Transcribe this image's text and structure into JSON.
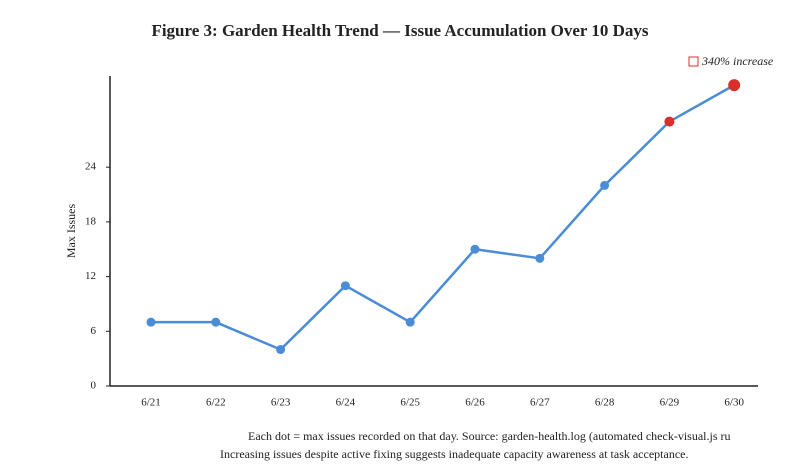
{
  "chart_data": {
    "type": "line",
    "title": "Figure 3: Garden Health Trend — Issue Accumulation Over 10 Days",
    "y_label": "Max Issues",
    "categories": [
      "6/21",
      "6/22",
      "6/23",
      "6/24",
      "6/25",
      "6/26",
      "6/27",
      "6/28",
      "6/29",
      "6/30"
    ],
    "series": [
      {
        "name": "Max Issues",
        "color": "#4a8cd6",
        "values": [
          7,
          7,
          4,
          11,
          7,
          15,
          14,
          22,
          29,
          33
        ]
      }
    ],
    "point_colors": [
      "#4a8cd6",
      "#4a8cd6",
      "#4a8cd6",
      "#4a8cd6",
      "#4a8cd6",
      "#4a8cd6",
      "#4a8cd6",
      "#4a8cd6",
      "#d9302c",
      "#d9302c"
    ],
    "ylim": [
      0,
      34
    ],
    "yticks": [
      0,
      6,
      12,
      18,
      24
    ],
    "annotation": "340% increase",
    "annotation_color": "#d9302c",
    "notes": [
      "Each dot = max issues recorded on that day. Source: garden-health.log (automated check-visual.js ru",
      "Increasing issues despite active fixing suggests inadequate capacity awareness at task acceptance."
    ]
  }
}
